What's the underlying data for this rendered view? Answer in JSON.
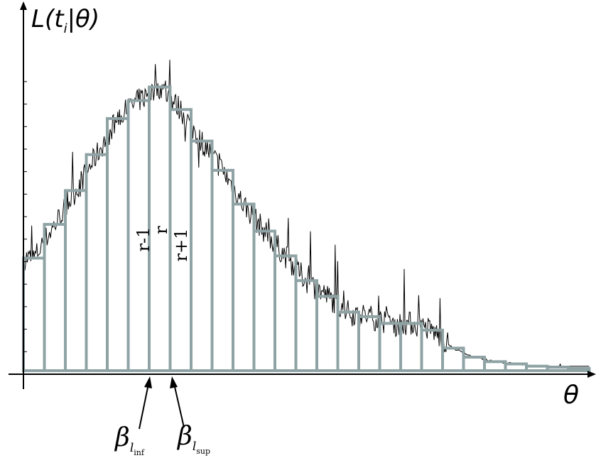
{
  "labels": {
    "y_axis_L": "L(",
    "y_axis_t": "t",
    "y_axis_i": "i",
    "y_axis_bar": "|",
    "y_axis_theta": "θ)",
    "x_axis_theta": "θ",
    "bin_r_minus_1": "r-1",
    "bin_r": "r",
    "bin_r_plus_1": "r+1",
    "beta_symbol": "β",
    "beta_inf_l": "l",
    "beta_inf_sub": "inf",
    "beta_sup_l": "l",
    "beta_sup_sub": "sup"
  },
  "histogram": {
    "bin_heights": [
      5.0,
      6.5,
      8.0,
      9.6,
      11.2,
      12.0,
      12.6,
      11.6,
      10.2,
      8.9,
      7.4,
      6.2,
      5.1,
      4.0,
      3.3,
      2.6,
      2.4,
      2.1,
      2.1,
      1.8,
      1.0,
      0.6,
      0.4,
      0.3,
      0.2,
      0.15,
      0.1
    ],
    "colors": {
      "bin_outline": "#8fa3a5",
      "noisy_curve": "#000000",
      "axes": "#000000"
    }
  }
}
